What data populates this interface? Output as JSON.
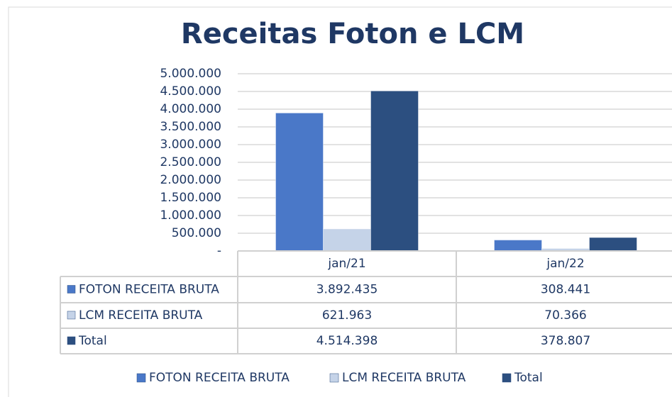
{
  "chart_data": {
    "type": "bar",
    "title": "Receitas Foton e LCM",
    "categories": [
      "jan/21",
      "jan/22"
    ],
    "series": [
      {
        "name": "FOTON RECEITA BRUTA",
        "color": "#4a78c8",
        "values": [
          3892435,
          308441
        ],
        "value_labels": [
          "3.892.435",
          "308.441"
        ]
      },
      {
        "name": "LCM RECEITA BRUTA",
        "color": "#c5d3e8",
        "values": [
          621963,
          70366
        ],
        "value_labels": [
          "621.963",
          "70.366"
        ]
      },
      {
        "name": "Total",
        "color": "#2c4f80",
        "values": [
          4514398,
          378807
        ],
        "value_labels": [
          "4.514.398",
          "378.807"
        ]
      }
    ],
    "ylim": [
      0,
      5000000
    ],
    "yticks": [
      {
        "value": 0,
        "label": "-"
      },
      {
        "value": 500000,
        "label": "500.000"
      },
      {
        "value": 1000000,
        "label": "1.000.000"
      },
      {
        "value": 1500000,
        "label": "1.500.000"
      },
      {
        "value": 2000000,
        "label": "2.000.000"
      },
      {
        "value": 2500000,
        "label": "2.500.000"
      },
      {
        "value": 3000000,
        "label": "3.000.000"
      },
      {
        "value": 3500000,
        "label": "3.500.000"
      },
      {
        "value": 4000000,
        "label": "4.000.000"
      },
      {
        "value": 4500000,
        "label": "4.500.000"
      },
      {
        "value": 5000000,
        "label": "5.000.000"
      }
    ],
    "grid": true,
    "legend": "bottom"
  }
}
